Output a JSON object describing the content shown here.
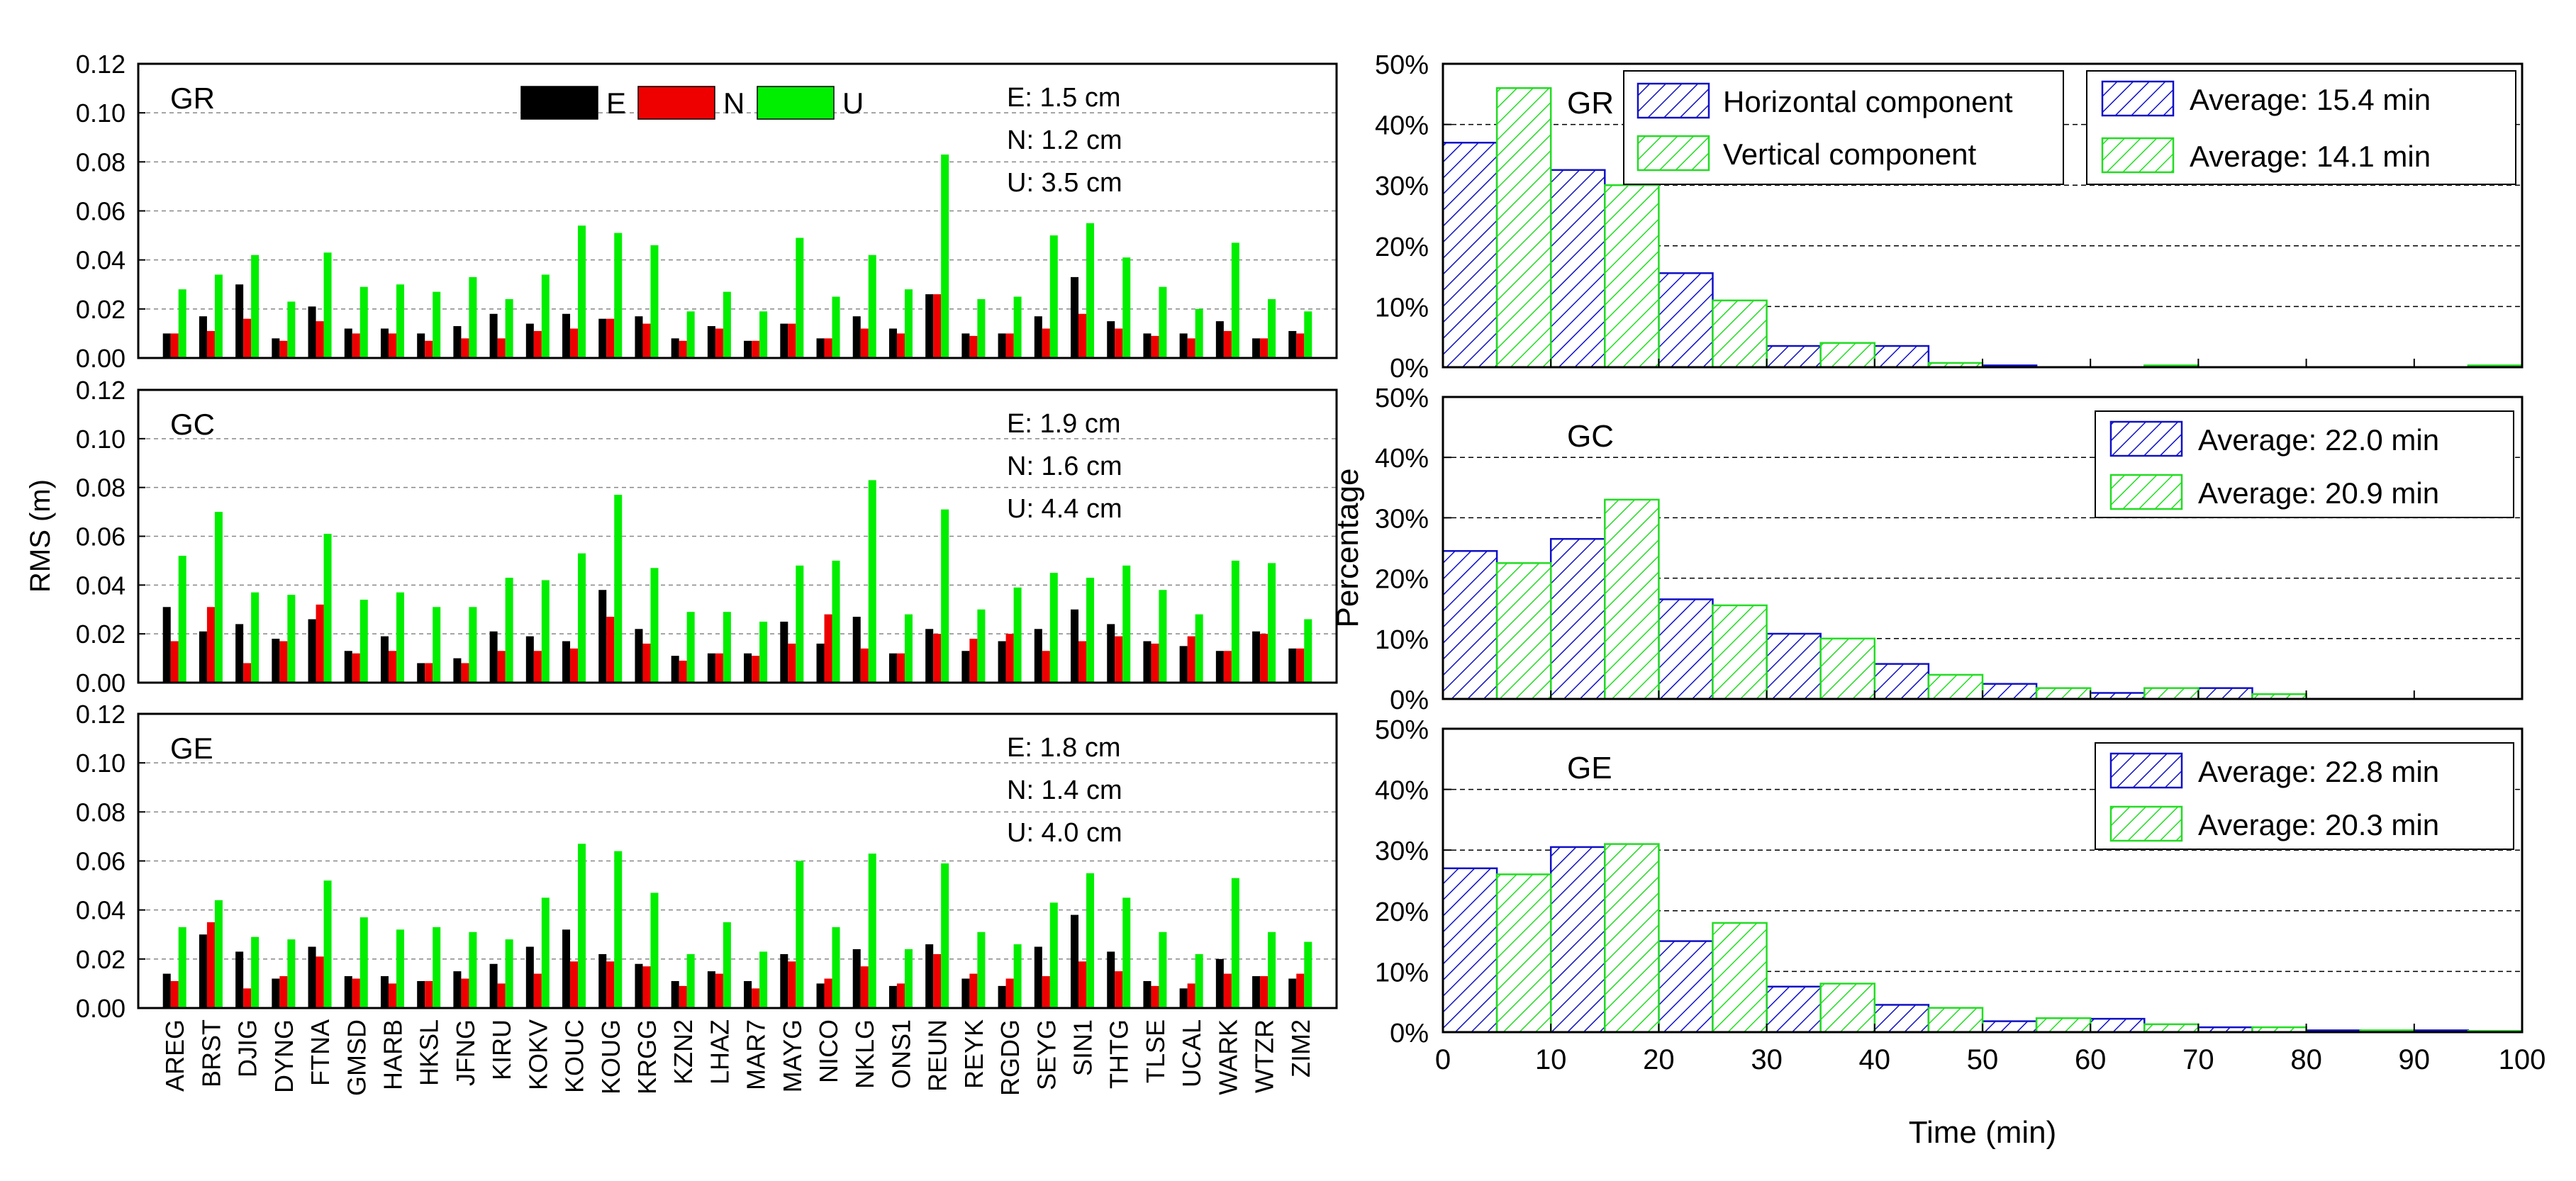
{
  "colors": {
    "E": "#000000",
    "N": "#ee0000",
    "U": "#00ee00",
    "horizontal": "#1010c8",
    "vertical": "#22dd22",
    "frame": "#000000",
    "grid": "#888888"
  },
  "chart_data": [
    {
      "id": "rms",
      "type": "bar",
      "ylabel": "RMS (m)",
      "ylim": [
        0,
        0.12
      ],
      "yticks": [
        "0.00",
        "0.02",
        "0.04",
        "0.06",
        "0.08",
        "0.10",
        "0.12"
      ],
      "legend": {
        "E": "E",
        "N": "N",
        "U": "U"
      },
      "categories": [
        "AREG",
        "BRST",
        "DJIG",
        "DYNG",
        "FTNA",
        "GMSD",
        "HARB",
        "HKSL",
        "JFNG",
        "KIRU",
        "KOKV",
        "KOUC",
        "KOUG",
        "KRGG",
        "KZN2",
        "LHAZ",
        "MAR7",
        "MAYG",
        "NICO",
        "NKLG",
        "ONS1",
        "REUN",
        "REYK",
        "RGDG",
        "SEYG",
        "SIN1",
        "THTG",
        "TLSE",
        "UCAL",
        "WARK",
        "WTZR",
        "ZIM2"
      ],
      "panels": [
        {
          "label": "GR",
          "stats": [
            "E: 1.5 cm",
            "N: 1.2 cm",
            "U: 3.5 cm"
          ],
          "series": [
            {
              "name": "E",
              "values": [
                0.01,
                0.017,
                0.03,
                0.008,
                0.021,
                0.012,
                0.012,
                0.01,
                0.013,
                0.018,
                0.014,
                0.018,
                0.016,
                0.017,
                0.008,
                0.013,
                0.007,
                0.014,
                0.008,
                0.017,
                0.012,
                0.026,
                0.01,
                0.01,
                0.017,
                0.033,
                0.015,
                0.01,
                0.01,
                0.015,
                0.008,
                0.011
              ]
            },
            {
              "name": "N",
              "values": [
                0.01,
                0.011,
                0.016,
                0.007,
                0.015,
                0.01,
                0.01,
                0.007,
                0.008,
                0.008,
                0.011,
                0.012,
                0.016,
                0.014,
                0.007,
                0.012,
                0.007,
                0.014,
                0.008,
                0.012,
                0.01,
                0.026,
                0.009,
                0.01,
                0.012,
                0.018,
                0.012,
                0.009,
                0.008,
                0.011,
                0.008,
                0.01
              ]
            },
            {
              "name": "U",
              "values": [
                0.028,
                0.034,
                0.042,
                0.023,
                0.043,
                0.029,
                0.03,
                0.027,
                0.033,
                0.024,
                0.034,
                0.054,
                0.051,
                0.046,
                0.019,
                0.027,
                0.019,
                0.049,
                0.025,
                0.042,
                0.028,
                0.083,
                0.024,
                0.025,
                0.05,
                0.055,
                0.041,
                0.029,
                0.02,
                0.047,
                0.024,
                0.019
              ]
            }
          ]
        },
        {
          "label": "GC",
          "stats": [
            "E: 1.9 cm",
            "N: 1.6 cm",
            "U: 4.4 cm"
          ],
          "series": [
            {
              "name": "E",
              "values": [
                0.031,
                0.021,
                0.024,
                0.018,
                0.026,
                0.013,
                0.019,
                0.008,
                0.01,
                0.021,
                0.019,
                0.017,
                0.038,
                0.022,
                0.011,
                0.012,
                0.012,
                0.025,
                0.016,
                0.027,
                0.012,
                0.022,
                0.013,
                0.017,
                0.022,
                0.03,
                0.024,
                0.017,
                0.015,
                0.013,
                0.021,
                0.014
              ]
            },
            {
              "name": "N",
              "values": [
                0.017,
                0.031,
                0.008,
                0.017,
                0.032,
                0.012,
                0.013,
                0.008,
                0.008,
                0.013,
                0.013,
                0.014,
                0.027,
                0.016,
                0.009,
                0.012,
                0.011,
                0.016,
                0.028,
                0.014,
                0.012,
                0.02,
                0.018,
                0.02,
                0.013,
                0.017,
                0.019,
                0.016,
                0.019,
                0.013,
                0.02,
                0.014
              ]
            },
            {
              "name": "U",
              "values": [
                0.052,
                0.07,
                0.037,
                0.036,
                0.061,
                0.034,
                0.037,
                0.031,
                0.031,
                0.043,
                0.042,
                0.053,
                0.077,
                0.047,
                0.029,
                0.029,
                0.025,
                0.048,
                0.05,
                0.083,
                0.028,
                0.071,
                0.03,
                0.039,
                0.045,
                0.043,
                0.048,
                0.038,
                0.028,
                0.05,
                0.049,
                0.026
              ]
            }
          ]
        },
        {
          "label": "GE",
          "stats": [
            "E: 1.8 cm",
            "N: 1.4 cm",
            "U: 4.0 cm"
          ],
          "series": [
            {
              "name": "E",
              "values": [
                0.014,
                0.03,
                0.023,
                0.012,
                0.025,
                0.013,
                0.013,
                0.011,
                0.015,
                0.018,
                0.025,
                0.032,
                0.022,
                0.018,
                0.011,
                0.015,
                0.011,
                0.022,
                0.01,
                0.024,
                0.009,
                0.026,
                0.012,
                0.009,
                0.025,
                0.038,
                0.023,
                0.011,
                0.008,
                0.02,
                0.013,
                0.012
              ]
            },
            {
              "name": "N",
              "values": [
                0.011,
                0.035,
                0.008,
                0.013,
                0.021,
                0.012,
                0.01,
                0.011,
                0.012,
                0.01,
                0.014,
                0.019,
                0.019,
                0.017,
                0.009,
                0.014,
                0.008,
                0.019,
                0.012,
                0.017,
                0.01,
                0.022,
                0.014,
                0.012,
                0.013,
                0.019,
                0.015,
                0.009,
                0.01,
                0.014,
                0.013,
                0.014
              ]
            },
            {
              "name": "U",
              "values": [
                0.033,
                0.044,
                0.029,
                0.028,
                0.052,
                0.037,
                0.032,
                0.033,
                0.031,
                0.028,
                0.045,
                0.067,
                0.064,
                0.047,
                0.022,
                0.035,
                0.023,
                0.06,
                0.033,
                0.063,
                0.024,
                0.059,
                0.031,
                0.026,
                0.043,
                0.055,
                0.045,
                0.031,
                0.022,
                0.053,
                0.031,
                0.027
              ]
            }
          ]
        }
      ]
    },
    {
      "id": "convergence",
      "type": "bar",
      "xlabel": "Time (min)",
      "ylabel": "Percentage",
      "xlim": [
        0,
        100
      ],
      "ylim": [
        0,
        50
      ],
      "xticks": [
        "0",
        "10",
        "20",
        "30",
        "40",
        "50",
        "60",
        "70",
        "80",
        "90",
        "100"
      ],
      "yticks": [
        "0%",
        "10%",
        "20%",
        "30%",
        "40%",
        "50%"
      ],
      "bin_edges": [
        0,
        10,
        20,
        30,
        40,
        50,
        60,
        70,
        80,
        90,
        100
      ],
      "legend": {
        "horizontal": "Horizontal component",
        "vertical": "Vertical component"
      },
      "panels": [
        {
          "label": "GR",
          "averages": [
            "Average: 15.4 min",
            "Average: 14.1 min"
          ],
          "series": [
            {
              "name": "Horizontal component",
              "values": [
                37,
                32.5,
                15.5,
                3.5,
                3.5,
                0.3,
                0,
                0,
                0,
                0
              ]
            },
            {
              "name": "Vertical component",
              "values": [
                46,
                30,
                11,
                4,
                0.7,
                0,
                0.3,
                0,
                0,
                0.3
              ]
            }
          ]
        },
        {
          "label": "GC",
          "averages": [
            "Average: 22.0 min",
            "Average: 20.9 min"
          ],
          "series": [
            {
              "name": "Horizontal component",
              "values": [
                24.5,
                26.5,
                16.5,
                10.8,
                5.8,
                2.5,
                1,
                1.8,
                0,
                0
              ]
            },
            {
              "name": "Vertical component",
              "values": [
                22.5,
                33,
                15.5,
                10,
                4,
                1.8,
                1.8,
                0.8,
                0,
                0
              ]
            }
          ]
        },
        {
          "label": "GE",
          "averages": [
            "Average: 22.8 min",
            "Average: 20.3 min"
          ],
          "series": [
            {
              "name": "Horizontal component",
              "values": [
                27,
                30.5,
                15,
                7.5,
                4.5,
                1.8,
                2.2,
                0.8,
                0.3,
                0.3
              ]
            },
            {
              "name": "Vertical component",
              "values": [
                26,
                31,
                18,
                8,
                4,
                2.3,
                1.3,
                0.8,
                0.3,
                0.2
              ]
            }
          ]
        }
      ]
    }
  ]
}
